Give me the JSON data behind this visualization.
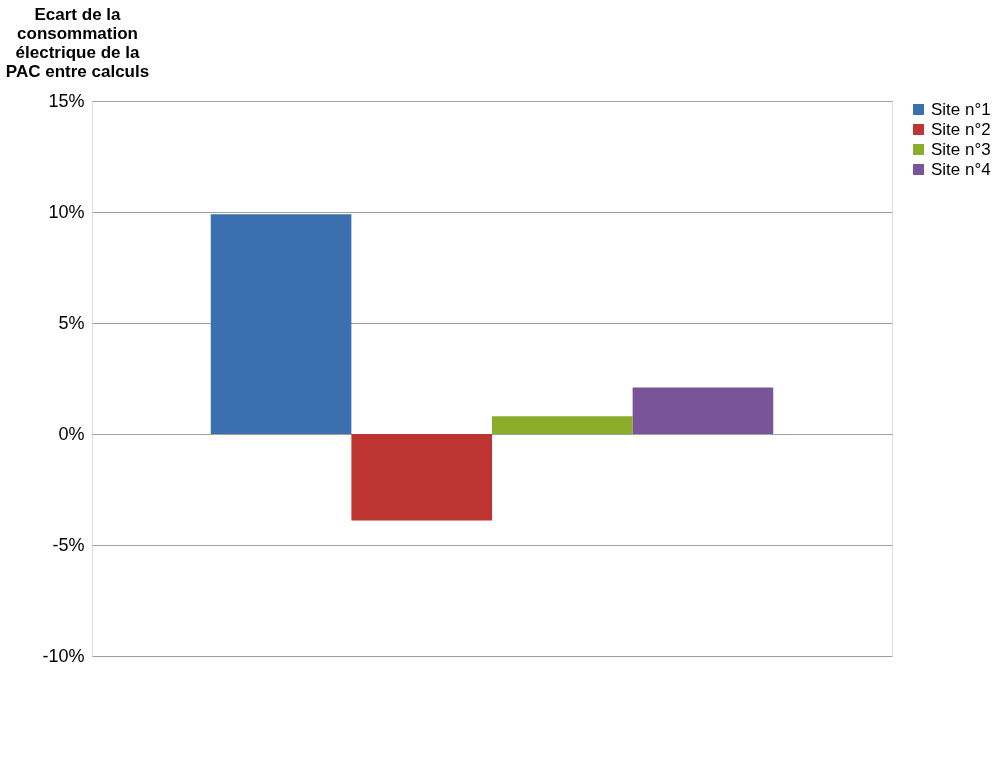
{
  "chart_data": {
    "type": "bar",
    "ylabel": "Ecart de la consommation électrique de la PAC entre calculs",
    "categories": [
      null
    ],
    "series": [
      {
        "name": "Site n°1",
        "color": "#3a6fb0",
        "values": [
          9.9
        ]
      },
      {
        "name": "Site n°2",
        "color": "#be3431",
        "values": [
          -3.9
        ]
      },
      {
        "name": "Site n°3",
        "color": "#8cad2c",
        "values": [
          0.8
        ]
      },
      {
        "name": "Site n°4",
        "color": "#7a5498",
        "values": [
          2.1
        ]
      }
    ],
    "ylim": [
      -10,
      15
    ],
    "yticks": [
      {
        "value": -10,
        "label": "-10%"
      },
      {
        "value": -5,
        "label": "-5%"
      },
      {
        "value": 0,
        "label": "0%"
      },
      {
        "value": 5,
        "label": "5%"
      },
      {
        "value": 10,
        "label": "10%"
      },
      {
        "value": 15,
        "label": "15%"
      }
    ],
    "grid": "y",
    "legend": "right"
  }
}
